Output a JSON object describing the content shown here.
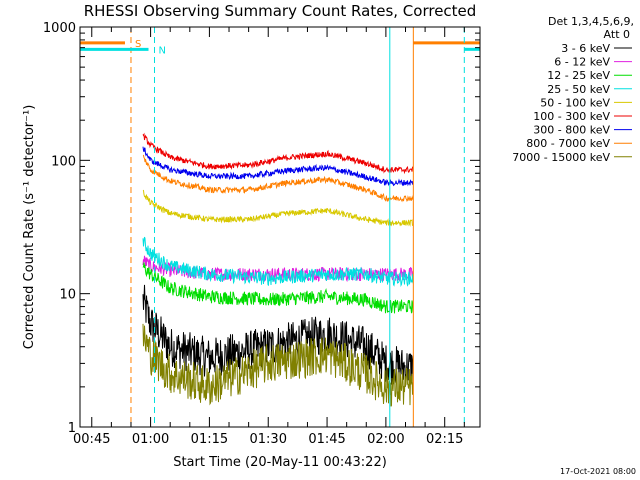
{
  "chart_data": {
    "type": "line",
    "title": "RHESSI Observing Summary Count Rates, Corrected",
    "xlabel": "Start Time (20-May-11 00:43:22)",
    "ylabel": "Corrected Count Rate (s⁻¹ detector⁻¹)",
    "y_scale": "log",
    "ylim": [
      1,
      1000
    ],
    "xlim": [
      "00:42",
      "02:24"
    ],
    "x_ticks": [
      "00:45",
      "01:00",
      "01:15",
      "01:30",
      "01:45",
      "02:00",
      "02:15"
    ],
    "y_ticks": [
      "1",
      "10",
      "100",
      "1000"
    ],
    "grid": false,
    "legend_position": "right",
    "legend_header": [
      "Det 1,3,4,5,6,9,",
      "Att 0"
    ],
    "footer": "17-Oct-2021 08:00",
    "data_start": "00:58",
    "data_end": "02:07",
    "series": [
      {
        "name": "3 - 6 keV",
        "color": "#000000",
        "x": [
          "00:58",
          "01:00",
          "01:05",
          "01:15",
          "01:30",
          "01:45",
          "01:55",
          "02:00",
          "02:05",
          "02:07"
        ],
        "y": [
          9,
          6,
          4,
          3.3,
          4,
          5,
          4,
          3,
          2.8,
          2.8
        ]
      },
      {
        "name": "6 - 12 keV",
        "color": "#e020e0",
        "x": [
          "00:58",
          "01:00",
          "01:05",
          "01:15",
          "01:30",
          "01:45",
          "02:00",
          "02:07"
        ],
        "y": [
          18,
          16,
          15,
          14,
          14,
          14,
          14,
          14
        ]
      },
      {
        "name": "12 - 25 keV",
        "color": "#00dd00",
        "x": [
          "00:58",
          "01:00",
          "01:05",
          "01:15",
          "01:30",
          "01:45",
          "01:55",
          "02:00",
          "02:07"
        ],
        "y": [
          16,
          14,
          11,
          9.5,
          9,
          9.5,
          9,
          8,
          8
        ]
      },
      {
        "name": "25 - 50 keV",
        "color": "#00e0e0",
        "x": [
          "00:58",
          "01:00",
          "01:05",
          "01:15",
          "01:30",
          "01:45",
          "01:55",
          "02:00",
          "02:07"
        ],
        "y": [
          25,
          20,
          16,
          14,
          13,
          14,
          14,
          13,
          13
        ]
      },
      {
        "name": "50 - 100 keV",
        "color": "#d8c800",
        "x": [
          "00:58",
          "01:00",
          "01:05",
          "01:15",
          "01:25",
          "01:35",
          "01:45",
          "01:55",
          "02:00",
          "02:07"
        ],
        "y": [
          58,
          48,
          40,
          36,
          36,
          40,
          42,
          36,
          34,
          34
        ]
      },
      {
        "name": "100 - 300 keV",
        "color": "#ee0000",
        "x": [
          "00:58",
          "01:00",
          "01:05",
          "01:15",
          "01:25",
          "01:35",
          "01:45",
          "01:55",
          "02:00",
          "02:07"
        ],
        "y": [
          155,
          130,
          105,
          90,
          92,
          105,
          112,
          95,
          85,
          85
        ]
      },
      {
        "name": "300 - 800 keV",
        "color": "#0000ee",
        "x": [
          "00:58",
          "01:00",
          "01:05",
          "01:15",
          "01:25",
          "01:35",
          "01:45",
          "01:55",
          "02:00",
          "02:07"
        ],
        "y": [
          125,
          100,
          85,
          76,
          76,
          84,
          88,
          75,
          68,
          68
        ]
      },
      {
        "name": "800 - 7000 keV",
        "color": "#ff7f00",
        "x": [
          "00:58",
          "01:00",
          "01:05",
          "01:15",
          "01:25",
          "01:35",
          "01:45",
          "01:55",
          "02:00",
          "02:07"
        ],
        "y": [
          108,
          85,
          70,
          60,
          60,
          68,
          72,
          60,
          52,
          52
        ]
      },
      {
        "name": "7000 - 15000 keV",
        "color": "#808000",
        "x": [
          "00:58",
          "01:00",
          "01:05",
          "01:15",
          "01:30",
          "01:45",
          "01:55",
          "02:00",
          "02:07"
        ],
        "y": [
          5,
          3.5,
          2.5,
          2,
          3,
          3.5,
          2.5,
          2,
          2
        ]
      }
    ],
    "annotations": [
      {
        "label": "S",
        "color": "#ff7f00",
        "x_start": "00:42",
        "x_end": "00:55",
        "y": 760,
        "vlines": [
          "00:55",
          "02:07"
        ]
      },
      {
        "label": "N",
        "color": "#00e0e0",
        "x_start": "00:42",
        "x_end": "01:01",
        "y": 680,
        "vlines": [
          "01:01",
          "02:01",
          "02:20"
        ]
      }
    ]
  }
}
